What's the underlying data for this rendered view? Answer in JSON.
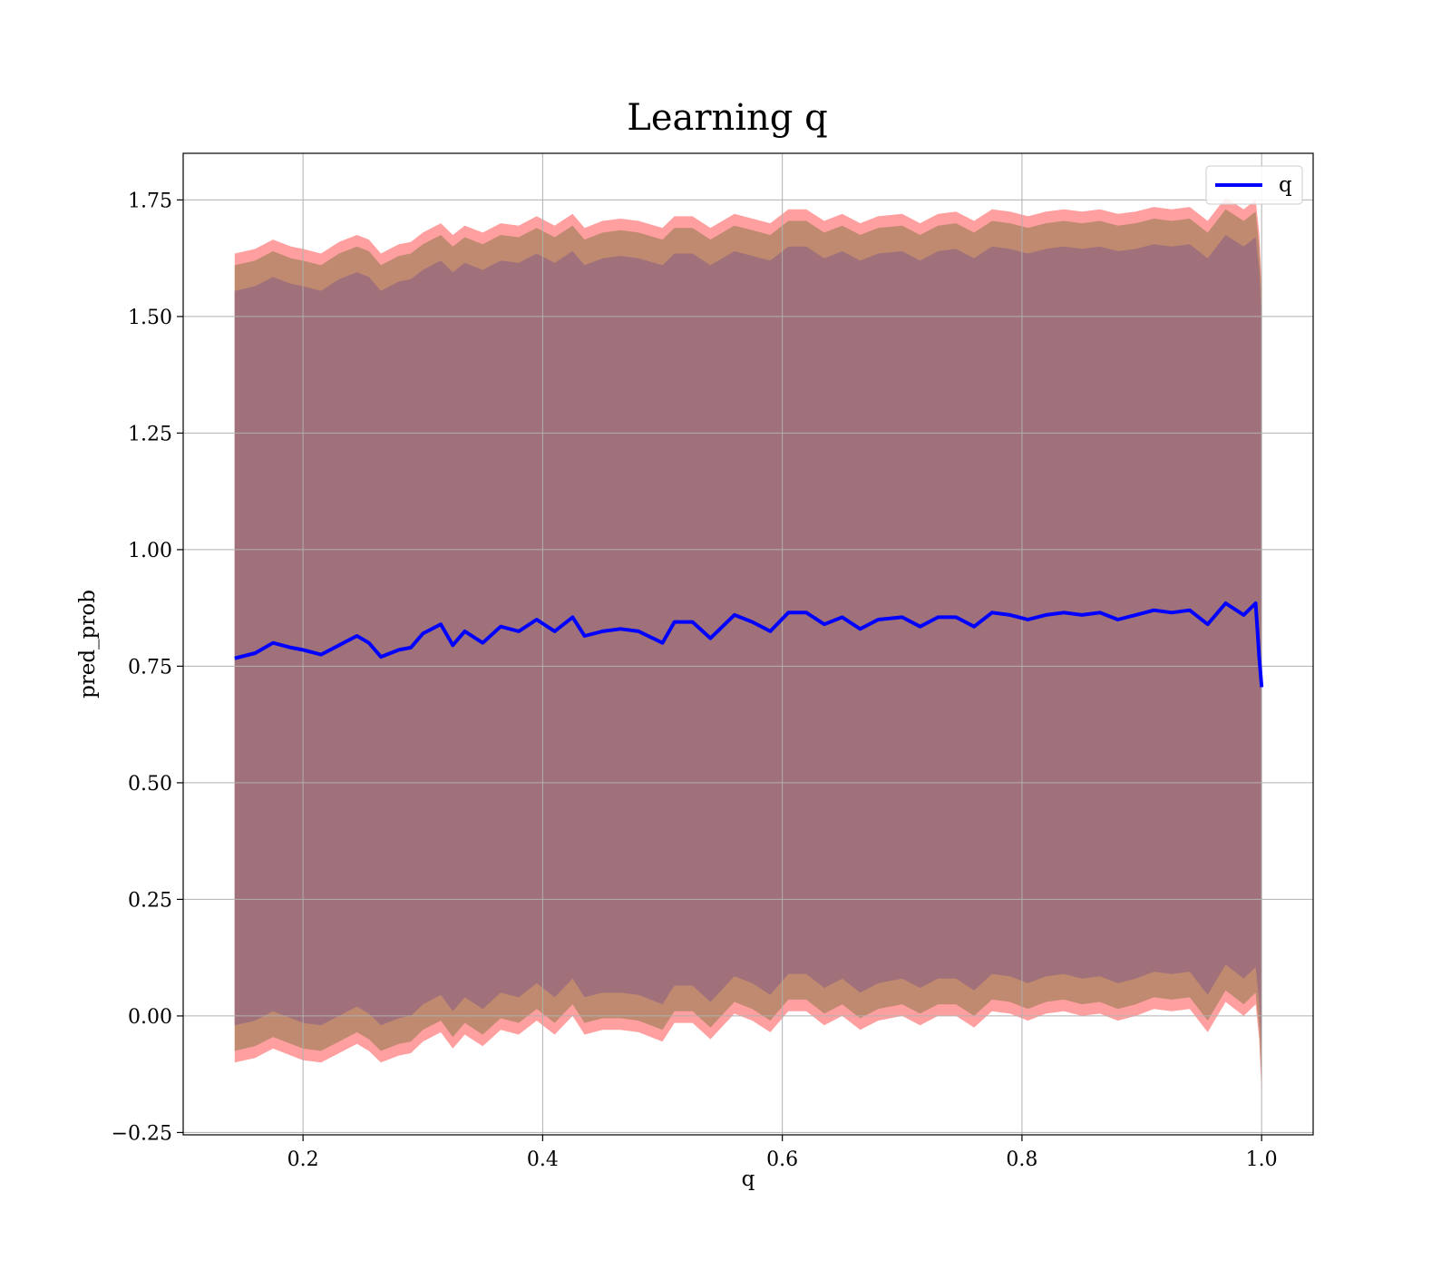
{
  "chart_data": {
    "type": "line",
    "title": "Learning q",
    "xlabel": "q",
    "ylabel": "pred_prob",
    "xlim": [
      0.1,
      1.043
    ],
    "ylim": [
      -0.255,
      1.85
    ],
    "xticks": [
      0.2,
      0.4,
      0.6,
      0.8,
      1.0
    ],
    "xtick_labels": [
      "0.2",
      "0.4",
      "0.6",
      "0.8",
      "1.0"
    ],
    "yticks": [
      -0.25,
      0.0,
      0.25,
      0.5,
      0.75,
      1.0,
      1.25,
      1.5,
      1.75
    ],
    "ytick_labels": [
      "−0.25",
      "0.00",
      "0.25",
      "0.50",
      "0.75",
      "1.00",
      "1.25",
      "1.50",
      "1.75"
    ],
    "grid": true,
    "legend": {
      "position": "top-right",
      "entries": [
        "q"
      ]
    },
    "colors": {
      "line": "#0000ff",
      "outer_band": "#ff9f9f",
      "middle_band": "#c08a70",
      "inner_band": "#a0717a",
      "grid": "#b0b0b0"
    },
    "x": [
      0.143,
      0.16,
      0.175,
      0.19,
      0.2,
      0.215,
      0.23,
      0.245,
      0.255,
      0.265,
      0.28,
      0.29,
      0.3,
      0.315,
      0.325,
      0.335,
      0.35,
      0.365,
      0.38,
      0.395,
      0.41,
      0.425,
      0.435,
      0.45,
      0.465,
      0.48,
      0.5,
      0.51,
      0.525,
      0.54,
      0.56,
      0.575,
      0.59,
      0.605,
      0.62,
      0.635,
      0.65,
      0.665,
      0.68,
      0.7,
      0.715,
      0.73,
      0.745,
      0.76,
      0.775,
      0.79,
      0.805,
      0.82,
      0.835,
      0.85,
      0.865,
      0.88,
      0.895,
      0.91,
      0.925,
      0.94,
      0.955,
      0.97,
      0.985,
      0.995,
      0.998,
      1.0
    ],
    "series": [
      {
        "name": "q",
        "values": [
          0.767,
          0.778,
          0.8,
          0.79,
          0.785,
          0.775,
          0.795,
          0.815,
          0.8,
          0.77,
          0.785,
          0.79,
          0.82,
          0.84,
          0.795,
          0.825,
          0.8,
          0.835,
          0.825,
          0.85,
          0.825,
          0.855,
          0.815,
          0.825,
          0.83,
          0.825,
          0.8,
          0.845,
          0.845,
          0.81,
          0.86,
          0.845,
          0.825,
          0.865,
          0.865,
          0.84,
          0.855,
          0.83,
          0.85,
          0.855,
          0.835,
          0.855,
          0.855,
          0.835,
          0.865,
          0.86,
          0.85,
          0.86,
          0.865,
          0.86,
          0.865,
          0.85,
          0.86,
          0.87,
          0.865,
          0.87,
          0.84,
          0.885,
          0.86,
          0.885,
          0.77,
          0.705
        ]
      }
    ],
    "bands": [
      {
        "upper": [
          1.635,
          1.645,
          1.665,
          1.65,
          1.645,
          1.635,
          1.66,
          1.675,
          1.665,
          1.635,
          1.655,
          1.66,
          1.68,
          1.7,
          1.675,
          1.695,
          1.68,
          1.7,
          1.695,
          1.715,
          1.695,
          1.72,
          1.69,
          1.705,
          1.71,
          1.705,
          1.69,
          1.715,
          1.715,
          1.69,
          1.72,
          1.71,
          1.7,
          1.73,
          1.73,
          1.705,
          1.72,
          1.7,
          1.715,
          1.72,
          1.7,
          1.72,
          1.725,
          1.705,
          1.73,
          1.725,
          1.715,
          1.725,
          1.73,
          1.725,
          1.73,
          1.72,
          1.725,
          1.735,
          1.73,
          1.735,
          1.705,
          1.755,
          1.73,
          1.75,
          1.68,
          1.57
        ],
        "lower": [
          -0.1,
          -0.09,
          -0.07,
          -0.085,
          -0.095,
          -0.1,
          -0.08,
          -0.06,
          -0.075,
          -0.1,
          -0.085,
          -0.08,
          -0.055,
          -0.035,
          -0.07,
          -0.04,
          -0.065,
          -0.03,
          -0.04,
          -0.01,
          -0.04,
          0.0,
          -0.04,
          -0.03,
          -0.03,
          -0.035,
          -0.055,
          -0.015,
          -0.015,
          -0.05,
          0.005,
          -0.01,
          -0.035,
          0.01,
          0.01,
          -0.02,
          0.0,
          -0.03,
          -0.01,
          0.0,
          -0.02,
          0.0,
          0.0,
          -0.025,
          0.01,
          0.005,
          -0.01,
          0.005,
          0.01,
          0.0,
          0.005,
          -0.01,
          0.0,
          0.015,
          0.01,
          0.015,
          -0.035,
          0.03,
          0.0,
          0.025,
          -0.05,
          -0.17
        ]
      },
      {
        "upper": [
          1.61,
          1.62,
          1.64,
          1.625,
          1.62,
          1.61,
          1.635,
          1.65,
          1.64,
          1.61,
          1.63,
          1.635,
          1.655,
          1.675,
          1.65,
          1.67,
          1.655,
          1.675,
          1.67,
          1.69,
          1.67,
          1.695,
          1.665,
          1.68,
          1.685,
          1.68,
          1.665,
          1.69,
          1.69,
          1.665,
          1.695,
          1.685,
          1.675,
          1.705,
          1.705,
          1.68,
          1.695,
          1.675,
          1.69,
          1.695,
          1.675,
          1.695,
          1.7,
          1.68,
          1.705,
          1.7,
          1.69,
          1.7,
          1.705,
          1.7,
          1.705,
          1.695,
          1.7,
          1.71,
          1.705,
          1.71,
          1.68,
          1.73,
          1.705,
          1.725,
          1.65,
          1.55
        ],
        "lower": [
          -0.075,
          -0.065,
          -0.045,
          -0.06,
          -0.07,
          -0.075,
          -0.055,
          -0.035,
          -0.05,
          -0.075,
          -0.06,
          -0.055,
          -0.03,
          -0.01,
          -0.045,
          -0.015,
          -0.04,
          -0.005,
          -0.015,
          0.015,
          -0.015,
          0.025,
          -0.015,
          -0.005,
          -0.005,
          -0.01,
          -0.03,
          0.01,
          0.01,
          -0.025,
          0.03,
          0.015,
          -0.01,
          0.035,
          0.035,
          0.005,
          0.025,
          -0.005,
          0.015,
          0.025,
          0.005,
          0.025,
          0.025,
          0.0,
          0.035,
          0.03,
          0.015,
          0.03,
          0.035,
          0.025,
          0.03,
          0.015,
          0.025,
          0.04,
          0.035,
          0.04,
          -0.01,
          0.055,
          0.025,
          0.05,
          -0.03,
          -0.15
        ]
      },
      {
        "upper": [
          1.555,
          1.565,
          1.585,
          1.57,
          1.565,
          1.555,
          1.58,
          1.595,
          1.585,
          1.555,
          1.575,
          1.58,
          1.6,
          1.62,
          1.595,
          1.615,
          1.6,
          1.62,
          1.615,
          1.635,
          1.615,
          1.64,
          1.61,
          1.625,
          1.63,
          1.625,
          1.61,
          1.635,
          1.635,
          1.61,
          1.64,
          1.63,
          1.62,
          1.65,
          1.65,
          1.625,
          1.64,
          1.62,
          1.635,
          1.64,
          1.62,
          1.64,
          1.645,
          1.625,
          1.65,
          1.645,
          1.635,
          1.645,
          1.65,
          1.645,
          1.65,
          1.64,
          1.645,
          1.655,
          1.65,
          1.655,
          1.625,
          1.675,
          1.65,
          1.67,
          1.6,
          1.5
        ],
        "lower": [
          -0.02,
          -0.01,
          0.01,
          -0.005,
          -0.015,
          -0.02,
          0.0,
          0.02,
          0.005,
          -0.02,
          -0.005,
          0.0,
          0.025,
          0.045,
          0.01,
          0.04,
          0.015,
          0.05,
          0.04,
          0.07,
          0.04,
          0.08,
          0.04,
          0.05,
          0.05,
          0.045,
          0.025,
          0.065,
          0.065,
          0.03,
          0.085,
          0.07,
          0.045,
          0.09,
          0.09,
          0.06,
          0.08,
          0.05,
          0.07,
          0.08,
          0.06,
          0.08,
          0.08,
          0.055,
          0.09,
          0.085,
          0.07,
          0.085,
          0.09,
          0.08,
          0.085,
          0.07,
          0.08,
          0.095,
          0.09,
          0.095,
          0.045,
          0.11,
          0.08,
          0.105,
          0.03,
          -0.09
        ]
      }
    ]
  }
}
